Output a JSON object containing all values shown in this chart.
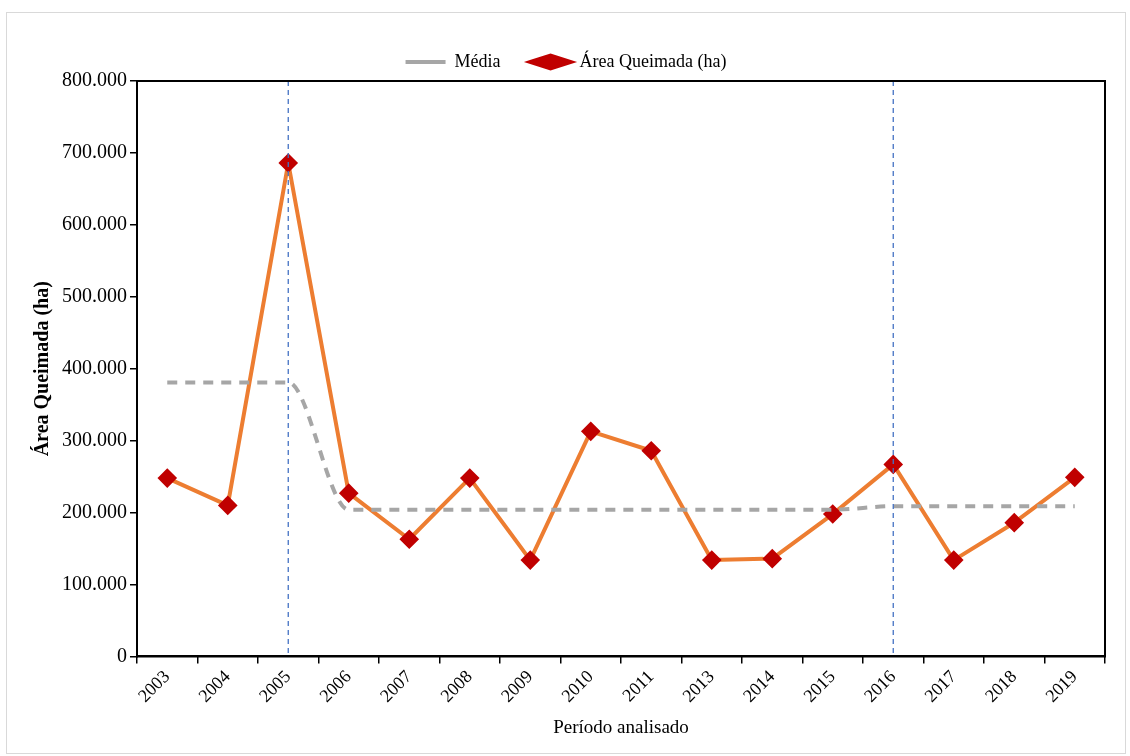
{
  "chart_data": {
    "type": "line",
    "xlabel": "Período analisado",
    "ylabel": "Área Queimada (ha)",
    "categories": [
      "2003",
      "2004",
      "2005",
      "2006",
      "2007",
      "2008",
      "2009",
      "2010",
      "2011",
      "2013",
      "2014",
      "2015",
      "2016",
      "2017",
      "2018",
      "2019"
    ],
    "series": [
      {
        "name": "Média",
        "color": "#a6a6a6",
        "line_style": "dashed",
        "marker": "none",
        "values": [
          381000,
          381000,
          381000,
          204000,
          204000,
          204000,
          204000,
          204000,
          204000,
          204000,
          204000,
          204000,
          209000,
          209000,
          209000,
          209000
        ]
      },
      {
        "name": "Área Queimada (ha)",
        "color": "#ed7d31",
        "line_style": "solid",
        "marker": "diamond",
        "values": [
          248000,
          210000,
          686000,
          227000,
          163000,
          248000,
          134000,
          313000,
          286000,
          134000,
          136000,
          198000,
          267000,
          134000,
          186000,
          249000
        ]
      }
    ],
    "ylim": [
      0,
      800000
    ],
    "yticks": [
      0,
      {
        "value": 100000,
        "label": "100.000"
      },
      {
        "value": 200000,
        "label": "200.000"
      },
      {
        "value": 300000,
        "label": "300.000"
      },
      {
        "value": 400000,
        "label": "400.000"
      },
      {
        "value": 500000,
        "label": "500.000"
      },
      {
        "value": 600000,
        "label": "600.000"
      },
      {
        "value": 700000,
        "label": "700.000"
      },
      {
        "value": 800000,
        "label": "800.000"
      }
    ],
    "ref_lines": [
      {
        "axis": "x",
        "value": "2005",
        "color": "#4472c4",
        "line_style": "dashed"
      },
      {
        "axis": "x",
        "value": "2016",
        "color": "#4472c4",
        "line_style": "dashed"
      }
    ],
    "grid": false,
    "legend": "top"
  }
}
